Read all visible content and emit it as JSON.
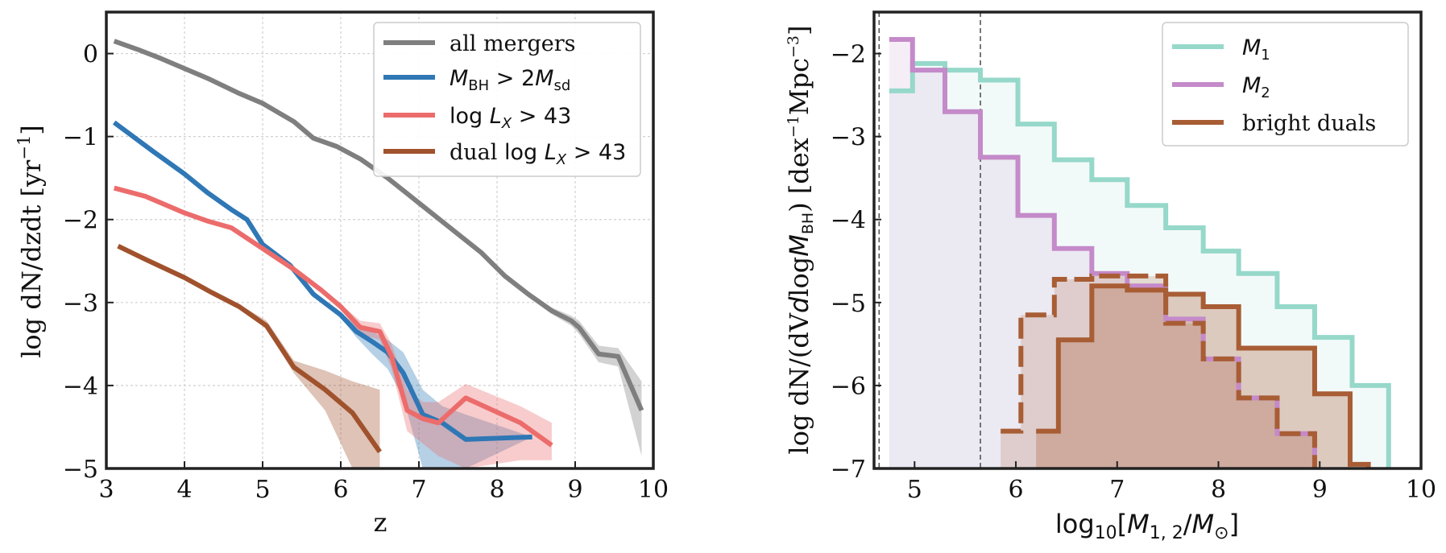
{
  "chart_data": [
    {
      "type": "line",
      "xlabel": "z",
      "ylabel": "log dN/dzdt [yr⁻¹]",
      "xlim": [
        3,
        10
      ],
      "ylim": [
        -5,
        0.5
      ],
      "xticks": [
        3,
        4,
        5,
        6,
        7,
        8,
        9,
        10
      ],
      "yticks": [
        0,
        -1,
        -2,
        -3,
        -4,
        -5
      ],
      "xtick_labels": [
        "3",
        "4",
        "5",
        "6",
        "7",
        "8",
        "9",
        "10"
      ],
      "ytick_labels": [
        "0",
        "−1",
        "−2",
        "−3",
        "−4",
        "−5"
      ],
      "grid": true,
      "legend_position": "top-right",
      "series": [
        {
          "name": "all mergers",
          "legend": "all mergers",
          "color": "#7f7f7f",
          "x": [
            3.1,
            3.4,
            3.7,
            4.0,
            4.3,
            4.7,
            5.0,
            5.4,
            5.65,
            5.95,
            6.25,
            6.6,
            7.0,
            7.4,
            7.8,
            8.1,
            8.4,
            8.7,
            8.95,
            9.05,
            9.3,
            9.55,
            9.85
          ],
          "y": [
            0.15,
            0.05,
            -0.06,
            -0.18,
            -0.3,
            -0.48,
            -0.6,
            -0.82,
            -1.02,
            -1.12,
            -1.27,
            -1.5,
            -1.8,
            -2.1,
            -2.4,
            -2.68,
            -2.9,
            -3.1,
            -3.22,
            -3.3,
            -3.62,
            -3.65,
            -4.3
          ],
          "band_lower": [
            0.15,
            0.05,
            -0.06,
            -0.18,
            -0.3,
            -0.48,
            -0.6,
            -0.82,
            -1.02,
            -1.12,
            -1.27,
            -1.5,
            -1.8,
            -2.1,
            -2.42,
            -2.7,
            -2.93,
            -3.14,
            -3.28,
            -3.38,
            -3.72,
            -3.77,
            -4.85
          ],
          "band_upper": [
            0.15,
            0.05,
            -0.06,
            -0.18,
            -0.3,
            -0.48,
            -0.6,
            -0.82,
            -1.02,
            -1.12,
            -1.27,
            -1.5,
            -1.8,
            -2.1,
            -2.38,
            -2.66,
            -2.87,
            -3.06,
            -3.16,
            -3.22,
            -3.52,
            -3.55,
            -3.95
          ]
        },
        {
          "name": "M_BH > 2M_sd",
          "legend": "M_BH > 2M_sd",
          "color": "#2f77b5",
          "x": [
            3.1,
            3.6,
            4.0,
            4.3,
            4.6,
            4.8,
            5.0,
            5.35,
            5.65,
            6.0,
            6.2,
            6.4,
            6.6,
            6.8,
            7.05,
            7.3,
            7.6,
            8.45
          ],
          "y": [
            -0.83,
            -1.18,
            -1.45,
            -1.68,
            -1.88,
            -2.0,
            -2.3,
            -2.55,
            -2.9,
            -3.15,
            -3.35,
            -3.47,
            -3.6,
            -3.85,
            -4.35,
            -4.45,
            -4.65,
            -4.62
          ],
          "band_lower": [
            -0.83,
            -1.18,
            -1.45,
            -1.68,
            -1.88,
            -2.0,
            -2.3,
            -2.55,
            -2.9,
            -3.18,
            -3.42,
            -3.62,
            -3.8,
            -4.15,
            -5.0,
            -5.0,
            -5.0,
            -4.62
          ],
          "band_upper": [
            -0.83,
            -1.18,
            -1.45,
            -1.68,
            -1.88,
            -2.0,
            -2.3,
            -2.55,
            -2.9,
            -3.12,
            -3.28,
            -3.35,
            -3.45,
            -3.6,
            -4.05,
            -4.25,
            -4.35,
            -4.62
          ]
        },
        {
          "name": "log L_X > 43",
          "legend": "log L_X > 43",
          "color": "#ec6c6c",
          "x": [
            3.1,
            3.5,
            4.0,
            4.3,
            4.6,
            5.0,
            5.4,
            5.75,
            6.0,
            6.25,
            6.5,
            6.65,
            6.85,
            7.05,
            7.25,
            7.6,
            8.3,
            8.7
          ],
          "y": [
            -1.62,
            -1.72,
            -1.92,
            -2.02,
            -2.1,
            -2.35,
            -2.6,
            -2.85,
            -3.05,
            -3.3,
            -3.35,
            -3.65,
            -4.3,
            -4.4,
            -4.45,
            -4.15,
            -4.45,
            -4.72
          ],
          "band_lower": [
            -1.62,
            -1.72,
            -1.92,
            -2.02,
            -2.1,
            -2.35,
            -2.6,
            -2.85,
            -3.08,
            -3.38,
            -3.45,
            -3.8,
            -4.55,
            -4.7,
            -4.85,
            -5.0,
            -4.9,
            -4.9
          ],
          "band_upper": [
            -1.62,
            -1.72,
            -1.92,
            -2.02,
            -2.1,
            -2.35,
            -2.6,
            -2.85,
            -3.02,
            -3.22,
            -3.25,
            -3.5,
            -4.05,
            -4.2,
            -4.2,
            -3.98,
            -4.25,
            -4.45
          ]
        },
        {
          "name": "dual log L_X > 43",
          "legend": "dual log L_X > 43",
          "color": "#a0522d",
          "x": [
            3.15,
            3.5,
            4.0,
            4.35,
            4.7,
            5.05,
            5.4,
            5.8,
            6.15,
            6.5
          ],
          "y": [
            -2.32,
            -2.48,
            -2.7,
            -2.88,
            -3.05,
            -3.28,
            -3.78,
            -4.05,
            -4.33,
            -4.8
          ],
          "band_lower": [
            -2.32,
            -2.48,
            -2.7,
            -2.88,
            -3.08,
            -3.32,
            -3.85,
            -4.3,
            -5.0,
            -5.0
          ],
          "band_upper": [
            -2.32,
            -2.48,
            -2.7,
            -2.88,
            -3.02,
            -3.22,
            -3.7,
            -3.82,
            -3.95,
            -4.05
          ]
        }
      ]
    },
    {
      "type": "step",
      "xlabel": "log10[M_1,2/M_sun]",
      "ylabel": "log dN/(dVdlogM_BH) [dex⁻¹Mpc⁻³]",
      "xlim": [
        4.6,
        10
      ],
      "ylim": [
        -7,
        -1.5
      ],
      "xticks": [
        5,
        6,
        7,
        8,
        9,
        10
      ],
      "yticks": [
        -2,
        -3,
        -4,
        -5,
        -6,
        -7
      ],
      "xtick_labels": [
        "5",
        "6",
        "7",
        "8",
        "9",
        "10"
      ],
      "ytick_labels": [
        "−2",
        "−3",
        "−4",
        "−5",
        "−6",
        "−7"
      ],
      "vlines": [
        4.65,
        5.65
      ],
      "legend_position": "top-right",
      "series": [
        {
          "name": "M1",
          "legend": "M_1",
          "color": "#96d8ca",
          "fill": true,
          "edges": [
            4.75,
            4.98,
            5.3,
            5.65,
            6.02,
            6.38,
            6.75,
            7.1,
            7.48,
            7.85,
            8.2,
            8.58,
            8.95,
            9.32,
            9.68
          ],
          "values": [
            -2.45,
            -2.12,
            -2.2,
            -2.32,
            -2.85,
            -3.28,
            -3.52,
            -3.83,
            -4.1,
            -4.38,
            -4.65,
            -5.05,
            -5.42,
            -6.0
          ]
        },
        {
          "name": "M2",
          "legend": "M_2",
          "color": "#c48ac9",
          "fill": true,
          "edges": [
            4.75,
            4.98,
            5.3,
            5.65,
            6.02,
            6.38,
            6.75,
            7.1,
            7.48,
            7.85,
            8.2,
            8.58,
            8.95
          ],
          "values": [
            -1.83,
            -2.2,
            -2.7,
            -3.25,
            -3.95,
            -4.35,
            -4.65,
            -4.8,
            -5.2,
            -5.68,
            -6.15,
            -6.58
          ]
        },
        {
          "name": "bright duals (M1)",
          "legend": "bright duals",
          "color": "#a85d35",
          "fill": true,
          "edges": [
            6.2,
            6.42,
            6.75,
            7.1,
            7.48,
            7.85,
            8.2,
            8.58,
            8.95,
            9.3,
            9.48
          ],
          "values": [
            -6.55,
            -5.45,
            -4.8,
            -4.85,
            -4.9,
            -5.05,
            -5.55,
            -5.55,
            -6.1,
            -6.95
          ]
        },
        {
          "name": "bright duals (M2)",
          "dashed": true,
          "color": "#a85d35",
          "fill": true,
          "edges": [
            5.85,
            6.05,
            6.38,
            6.75,
            7.1,
            7.48,
            7.85,
            8.2,
            8.58,
            8.95
          ],
          "values": [
            -6.55,
            -5.15,
            -4.72,
            -4.68,
            -4.68,
            -5.25,
            -5.68,
            -6.15,
            -6.58
          ]
        }
      ]
    }
  ]
}
